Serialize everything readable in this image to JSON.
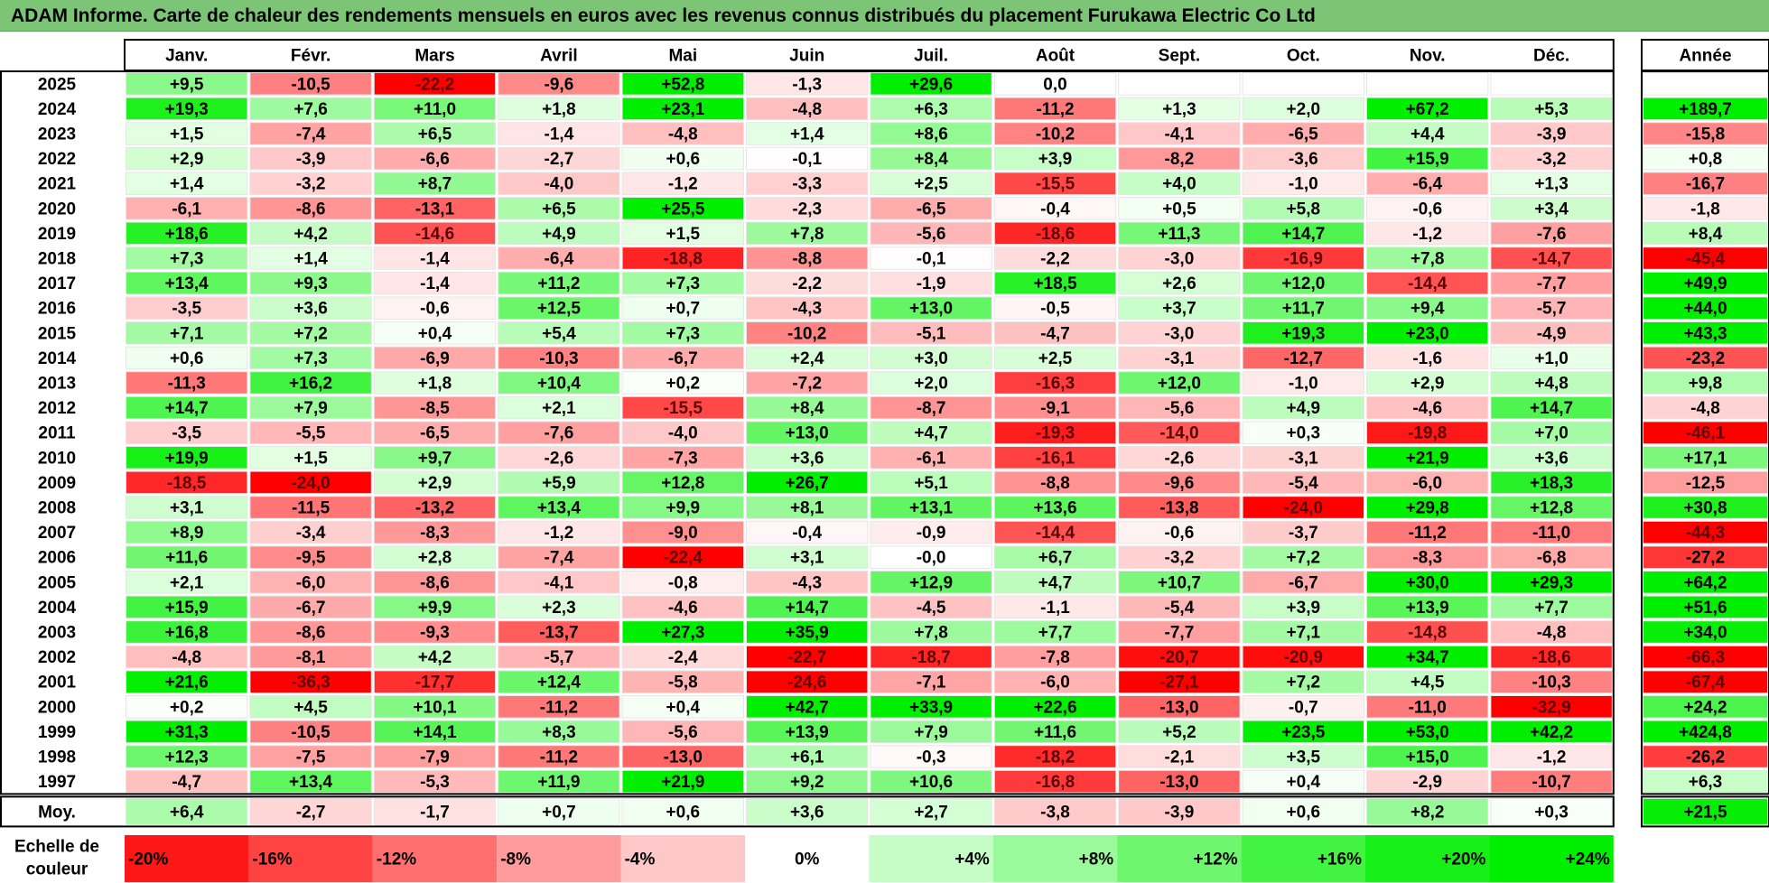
{
  "title": "ADAM Informe. Carte de chaleur des rendements mensuels en euros avec les revenus connus distribués du placement Furukawa Electric Co Ltd",
  "chart_data": {
    "type": "heatmap",
    "months": [
      "Janv.",
      "Févr.",
      "Mars",
      "Avril",
      "Mai",
      "Juin",
      "Juil.",
      "Août",
      "Sept.",
      "Oct.",
      "Nov.",
      "Déc."
    ],
    "year_header": "Année",
    "avg_label": "Moy.",
    "rows": [
      {
        "year": "2025",
        "values": [
          "+9,5",
          "-10,5",
          "-22,2",
          "-9,6",
          "+52,8",
          "-1,3",
          "+29,6",
          "0,0",
          "",
          "",
          "",
          ""
        ],
        "annual": ""
      },
      {
        "year": "2024",
        "values": [
          "+19,3",
          "+7,6",
          "+11,0",
          "+1,8",
          "+23,1",
          "-4,8",
          "+6,3",
          "-11,2",
          "+1,3",
          "+2,0",
          "+67,2",
          "+5,3"
        ],
        "annual": "+189,7"
      },
      {
        "year": "2023",
        "values": [
          "+1,5",
          "-7,4",
          "+6,5",
          "-1,4",
          "-4,8",
          "+1,4",
          "+8,6",
          "-10,2",
          "-4,1",
          "-6,5",
          "+4,4",
          "-3,9"
        ],
        "annual": "-15,8"
      },
      {
        "year": "2022",
        "values": [
          "+2,9",
          "-3,9",
          "-6,6",
          "-2,7",
          "+0,6",
          "-0,1",
          "+8,4",
          "+3,9",
          "-8,2",
          "-3,6",
          "+15,9",
          "-3,2"
        ],
        "annual": "+0,8"
      },
      {
        "year": "2021",
        "values": [
          "+1,4",
          "-3,2",
          "+8,7",
          "-4,0",
          "-1,2",
          "-3,3",
          "+2,5",
          "-15,5",
          "+4,0",
          "-1,0",
          "-6,4",
          "+1,3"
        ],
        "annual": "-16,7"
      },
      {
        "year": "2020",
        "values": [
          "-6,1",
          "-8,6",
          "-13,1",
          "+6,5",
          "+25,5",
          "-2,3",
          "-6,5",
          "-0,4",
          "+0,5",
          "+5,8",
          "-0,6",
          "+3,4"
        ],
        "annual": "-1,8"
      },
      {
        "year": "2019",
        "values": [
          "+18,6",
          "+4,2",
          "-14,6",
          "+4,9",
          "+1,5",
          "+7,8",
          "-5,6",
          "-18,6",
          "+11,3",
          "+14,7",
          "-1,2",
          "-7,6"
        ],
        "annual": "+8,4"
      },
      {
        "year": "2018",
        "values": [
          "+7,3",
          "+1,4",
          "-1,4",
          "-6,4",
          "-18,8",
          "-8,8",
          "-0,1",
          "-2,2",
          "-3,0",
          "-16,9",
          "+7,8",
          "-14,7"
        ],
        "annual": "-45,4"
      },
      {
        "year": "2017",
        "values": [
          "+13,4",
          "+9,3",
          "-1,4",
          "+11,2",
          "+7,3",
          "-2,2",
          "-1,9",
          "+18,5",
          "+2,6",
          "+12,0",
          "-14,4",
          "-7,7"
        ],
        "annual": "+49,9"
      },
      {
        "year": "2016",
        "values": [
          "-3,5",
          "+3,6",
          "-0,6",
          "+12,5",
          "+0,7",
          "-4,3",
          "+13,0",
          "-0,5",
          "+3,7",
          "+11,7",
          "+9,4",
          "-5,7"
        ],
        "annual": "+44,0"
      },
      {
        "year": "2015",
        "values": [
          "+7,1",
          "+7,2",
          "+0,4",
          "+5,4",
          "+7,3",
          "-10,2",
          "-5,1",
          "-4,7",
          "-3,0",
          "+19,3",
          "+23,0",
          "-4,9"
        ],
        "annual": "+43,3"
      },
      {
        "year": "2014",
        "values": [
          "+0,6",
          "+7,3",
          "-6,9",
          "-10,3",
          "-6,7",
          "+2,4",
          "+3,0",
          "+2,5",
          "-3,1",
          "-12,7",
          "-1,6",
          "+1,0"
        ],
        "annual": "-23,2"
      },
      {
        "year": "2013",
        "values": [
          "-11,3",
          "+16,2",
          "+1,8",
          "+10,4",
          "+0,2",
          "-7,2",
          "+2,0",
          "-16,3",
          "+12,0",
          "-1,0",
          "+2,9",
          "+4,8"
        ],
        "annual": "+9,8"
      },
      {
        "year": "2012",
        "values": [
          "+14,7",
          "+7,9",
          "-8,5",
          "+2,1",
          "-15,5",
          "+8,4",
          "-8,7",
          "-9,1",
          "-5,6",
          "+4,9",
          "-4,6",
          "+14,7"
        ],
        "annual": "-4,8"
      },
      {
        "year": "2011",
        "values": [
          "-3,5",
          "-5,5",
          "-6,5",
          "-7,6",
          "-4,0",
          "+13,0",
          "+4,7",
          "-19,3",
          "-14,0",
          "+0,3",
          "-19,8",
          "+7,0"
        ],
        "annual": "-46,1"
      },
      {
        "year": "2010",
        "values": [
          "+19,9",
          "+1,5",
          "+9,7",
          "-2,6",
          "-7,3",
          "+3,6",
          "-6,1",
          "-16,1",
          "-2,6",
          "-3,1",
          "+21,9",
          "+3,6"
        ],
        "annual": "+17,1"
      },
      {
        "year": "2009",
        "values": [
          "-18,5",
          "-24,0",
          "+2,9",
          "+5,9",
          "+12,8",
          "+26,7",
          "+5,1",
          "-8,8",
          "-9,6",
          "-5,4",
          "-6,0",
          "+18,3"
        ],
        "annual": "-12,5"
      },
      {
        "year": "2008",
        "values": [
          "+3,1",
          "-11,5",
          "-13,2",
          "+13,4",
          "+9,9",
          "+8,1",
          "+13,1",
          "+13,6",
          "-13,8",
          "-24,0",
          "+29,8",
          "+12,8"
        ],
        "annual": "+30,8"
      },
      {
        "year": "2007",
        "values": [
          "+8,9",
          "-3,4",
          "-8,3",
          "-1,2",
          "-9,0",
          "-0,4",
          "-0,9",
          "-14,4",
          "-0,6",
          "-3,7",
          "-11,2",
          "-11,0"
        ],
        "annual": "-44,3"
      },
      {
        "year": "2006",
        "values": [
          "+11,6",
          "-9,5",
          "+2,8",
          "-7,4",
          "-22,4",
          "+3,1",
          "-0,0",
          "+6,7",
          "-3,2",
          "+7,2",
          "-8,3",
          "-6,8"
        ],
        "annual": "-27,2"
      },
      {
        "year": "2005",
        "values": [
          "+2,1",
          "-6,0",
          "-8,6",
          "-4,1",
          "-0,8",
          "-4,3",
          "+12,9",
          "+4,7",
          "+10,7",
          "-6,7",
          "+30,0",
          "+29,3"
        ],
        "annual": "+64,2"
      },
      {
        "year": "2004",
        "values": [
          "+15,9",
          "-6,7",
          "+9,9",
          "+2,3",
          "-4,6",
          "+14,7",
          "-4,5",
          "-1,1",
          "-5,4",
          "+3,9",
          "+13,9",
          "+7,7"
        ],
        "annual": "+51,6"
      },
      {
        "year": "2003",
        "values": [
          "+16,8",
          "-8,6",
          "-9,3",
          "-13,7",
          "+27,3",
          "+35,9",
          "+7,8",
          "+7,7",
          "-7,7",
          "+7,1",
          "-14,8",
          "-4,8"
        ],
        "annual": "+34,0"
      },
      {
        "year": "2002",
        "values": [
          "-4,8",
          "-8,1",
          "+4,2",
          "-5,7",
          "-2,4",
          "-22,7",
          "-18,7",
          "-7,8",
          "-20,7",
          "-20,9",
          "+34,7",
          "-18,6"
        ],
        "annual": "-66,3"
      },
      {
        "year": "2001",
        "values": [
          "+21,6",
          "-36,3",
          "-17,7",
          "+12,4",
          "-5,8",
          "-24,6",
          "-7,1",
          "-6,0",
          "-27,1",
          "+7,2",
          "+4,5",
          "-10,3"
        ],
        "annual": "-67,4"
      },
      {
        "year": "2000",
        "values": [
          "+0,2",
          "+4,5",
          "+10,1",
          "-11,2",
          "+0,4",
          "+42,7",
          "+33,9",
          "+22,6",
          "-13,0",
          "-0,7",
          "-11,0",
          "-32,9"
        ],
        "annual": "+24,2"
      },
      {
        "year": "1999",
        "values": [
          "+31,3",
          "-10,5",
          "+14,1",
          "+8,3",
          "-5,6",
          "+13,9",
          "+7,9",
          "+11,6",
          "+5,2",
          "+23,5",
          "+53,0",
          "+42,2"
        ],
        "annual": "+424,8"
      },
      {
        "year": "1998",
        "values": [
          "+12,3",
          "-7,5",
          "-7,9",
          "-11,2",
          "-13,0",
          "+6,1",
          "-0,3",
          "-18,2",
          "-2,1",
          "+3,5",
          "+15,0",
          "-1,2"
        ],
        "annual": "-26,2"
      },
      {
        "year": "1997",
        "values": [
          "-4,7",
          "+13,4",
          "-5,3",
          "+11,9",
          "+21,9",
          "+9,2",
          "+10,6",
          "-16,8",
          "-13,0",
          "+0,4",
          "-2,9",
          "-10,7"
        ],
        "annual": "+6,3"
      }
    ],
    "average": {
      "values": [
        "+6,4",
        "-2,7",
        "-1,7",
        "+0,7",
        "+0,6",
        "+3,6",
        "+2,7",
        "-3,8",
        "-3,9",
        "+0,6",
        "+8,2",
        "+0,3"
      ],
      "annual": "+21,5"
    },
    "scale": {
      "label": [
        "Echelle de",
        "couleur"
      ],
      "steps": [
        "-20%",
        "-16%",
        "-12%",
        "-8%",
        "-4%",
        "0%",
        "+4%",
        "+8%",
        "+12%",
        "+16%",
        "+20%",
        "+24%"
      ]
    },
    "colors": {
      "neg_max": "#ff0000",
      "pos_max": "#00ee00",
      "neutral": "#ffffff",
      "title_bg": "#7cc576"
    }
  }
}
